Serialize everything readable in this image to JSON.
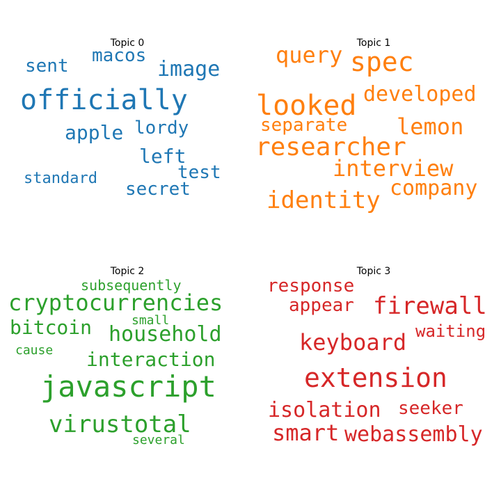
{
  "chart_data": [
    {
      "type": "wordcloud",
      "title": "Topic 0",
      "color": "#1f77b4",
      "words": [
        {
          "text": "officially",
          "weight": 1.0
        },
        {
          "text": "image",
          "weight": 0.62
        },
        {
          "text": "macos",
          "weight": 0.58
        },
        {
          "text": "sent",
          "weight": 0.58
        },
        {
          "text": "apple",
          "weight": 0.6
        },
        {
          "text": "lordy",
          "weight": 0.58
        },
        {
          "text": "left",
          "weight": 0.58
        },
        {
          "text": "test",
          "weight": 0.58
        },
        {
          "text": "standard",
          "weight": 0.5
        },
        {
          "text": "secret",
          "weight": 0.58
        }
      ]
    },
    {
      "type": "wordcloud",
      "title": "Topic 1",
      "color": "#ff7f0e",
      "words": [
        {
          "text": "query",
          "weight": 0.7
        },
        {
          "text": "spec",
          "weight": 0.85
        },
        {
          "text": "looked",
          "weight": 0.9
        },
        {
          "text": "developed",
          "weight": 0.68
        },
        {
          "text": "separate",
          "weight": 0.6
        },
        {
          "text": "lemon",
          "weight": 0.7
        },
        {
          "text": "researcher",
          "weight": 0.9
        },
        {
          "text": "interview",
          "weight": 0.7
        },
        {
          "text": "company",
          "weight": 0.68
        },
        {
          "text": "identity",
          "weight": 0.78
        }
      ]
    },
    {
      "type": "wordcloud",
      "title": "Topic 2",
      "color": "#2ca02c",
      "words": [
        {
          "text": "subsequently",
          "weight": 0.45
        },
        {
          "text": "cryptocurrencies",
          "weight": 0.78
        },
        {
          "text": "bitcoin",
          "weight": 0.7
        },
        {
          "text": "small",
          "weight": 0.4
        },
        {
          "text": "household",
          "weight": 0.72
        },
        {
          "text": "cause",
          "weight": 0.4
        },
        {
          "text": "interaction",
          "weight": 0.72
        },
        {
          "text": "javascript",
          "weight": 1.0
        },
        {
          "text": "virustotal",
          "weight": 0.78
        },
        {
          "text": "several",
          "weight": 0.4
        }
      ]
    },
    {
      "type": "wordcloud",
      "title": "Topic 3",
      "color": "#d62728",
      "words": [
        {
          "text": "response",
          "weight": 0.6
        },
        {
          "text": "appear",
          "weight": 0.62
        },
        {
          "text": "firewall",
          "weight": 0.8
        },
        {
          "text": "waiting",
          "weight": 0.6
        },
        {
          "text": "keyboard",
          "weight": 0.8
        },
        {
          "text": "extension",
          "weight": 1.0
        },
        {
          "text": "isolation",
          "weight": 0.7
        },
        {
          "text": "seeker",
          "weight": 0.62
        },
        {
          "text": "smart",
          "weight": 0.78
        },
        {
          "text": "webassembly",
          "weight": 0.72
        }
      ]
    }
  ]
}
